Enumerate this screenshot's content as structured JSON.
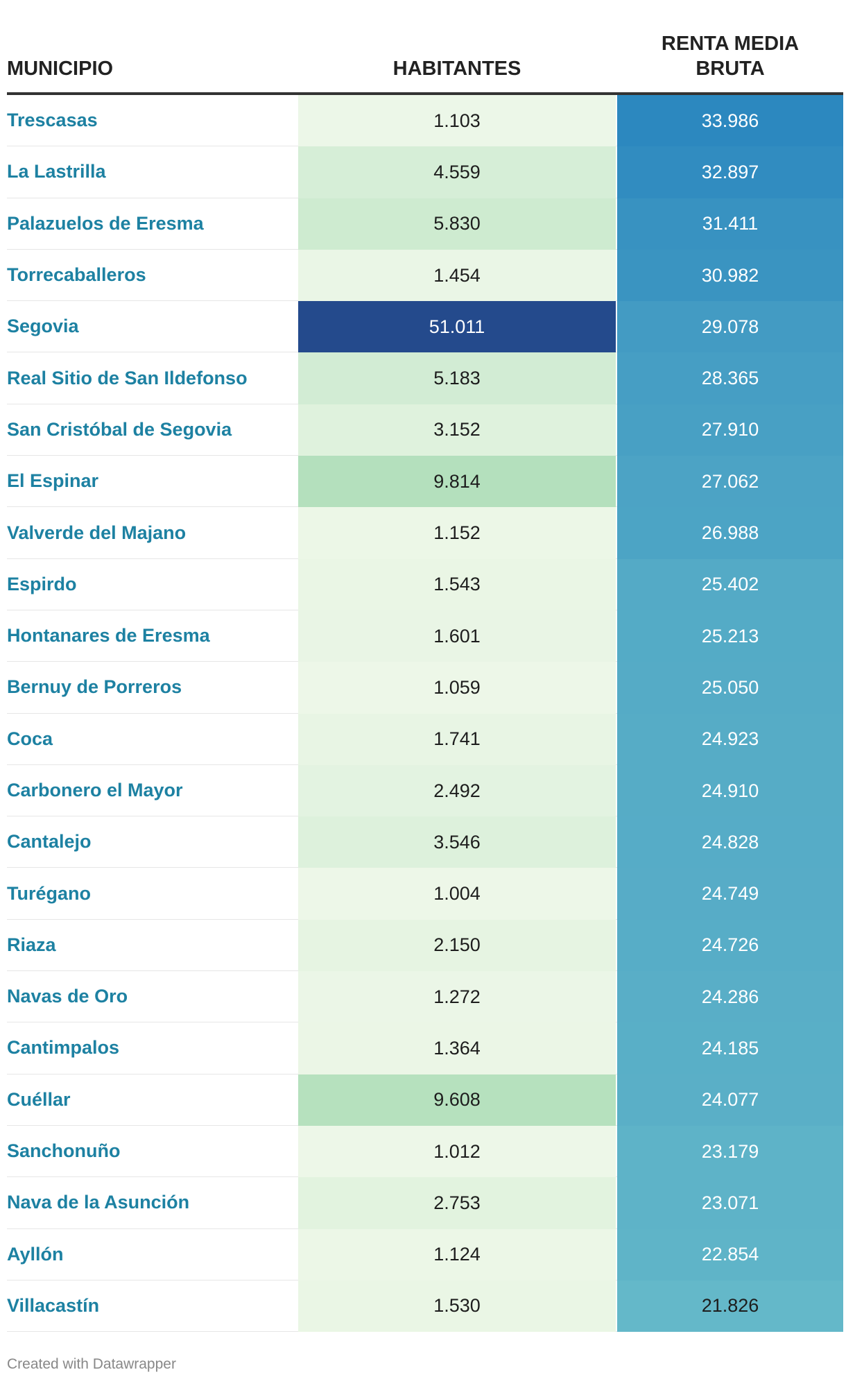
{
  "chart_data": {
    "type": "table",
    "columns": [
      "MUNICIPIO",
      "HABITANTES",
      "RENTA MEDIA BRUTA"
    ],
    "rows": [
      {
        "municipio": "Trescasas",
        "habitantes": "1.103",
        "renta": "33.986"
      },
      {
        "municipio": "La Lastrilla",
        "habitantes": "4.559",
        "renta": "32.897"
      },
      {
        "municipio": "Palazuelos de Eresma",
        "habitantes": "5.830",
        "renta": "31.411"
      },
      {
        "municipio": "Torrecaballeros",
        "habitantes": "1.454",
        "renta": "30.982"
      },
      {
        "municipio": "Segovia",
        "habitantes": "51.011",
        "renta": "29.078"
      },
      {
        "municipio": "Real Sitio de San Ildefonso",
        "habitantes": "5.183",
        "renta": "28.365"
      },
      {
        "municipio": "San Cristóbal de Segovia",
        "habitantes": "3.152",
        "renta": "27.910"
      },
      {
        "municipio": "El Espinar",
        "habitantes": "9.814",
        "renta": "27.062"
      },
      {
        "municipio": "Valverde del Majano",
        "habitantes": "1.152",
        "renta": "26.988"
      },
      {
        "municipio": "Espirdo",
        "habitantes": "1.543",
        "renta": "25.402"
      },
      {
        "municipio": "Hontanares de Eresma",
        "habitantes": "1.601",
        "renta": "25.213"
      },
      {
        "municipio": "Bernuy de Porreros",
        "habitantes": "1.059",
        "renta": "25.050"
      },
      {
        "municipio": "Coca",
        "habitantes": "1.741",
        "renta": "24.923"
      },
      {
        "municipio": "Carbonero el Mayor",
        "habitantes": "2.492",
        "renta": "24.910"
      },
      {
        "municipio": "Cantalejo",
        "habitantes": "3.546",
        "renta": "24.828"
      },
      {
        "municipio": "Turégano",
        "habitantes": "1.004",
        "renta": "24.749"
      },
      {
        "municipio": "Riaza",
        "habitantes": "2.150",
        "renta": "24.726"
      },
      {
        "municipio": "Navas de Oro",
        "habitantes": "1.272",
        "renta": "24.286"
      },
      {
        "municipio": "Cantimpalos",
        "habitantes": "1.364",
        "renta": "24.185"
      },
      {
        "municipio": "Cuéllar",
        "habitantes": "9.608",
        "renta": "24.077"
      },
      {
        "municipio": "Sanchonuño",
        "habitantes": "1.012",
        "renta": "23.179"
      },
      {
        "municipio": "Nava de la Asunción",
        "habitantes": "2.753",
        "renta": "23.071"
      },
      {
        "municipio": "Ayllón",
        "habitantes": "1.124",
        "renta": "22.854"
      },
      {
        "municipio": "Villacastín",
        "habitantes": "1.530",
        "renta": "21.826"
      }
    ]
  },
  "header": {
    "municipio": "MUNICIPIO",
    "habitantes": "HABITANTES",
    "renta_line1": "RENTA MEDIA",
    "renta_line2": "BRUTA"
  },
  "footer": "Created with Datawrapper",
  "colors": {
    "municipio_text": "#1d81a2",
    "habitantes_low": "#edf7e8",
    "habitantes_mid": "#b3e0bc",
    "habitantes_high": "#244a8c",
    "renta_high": "#2c88bf",
    "renta_low": "#64b8c9"
  }
}
